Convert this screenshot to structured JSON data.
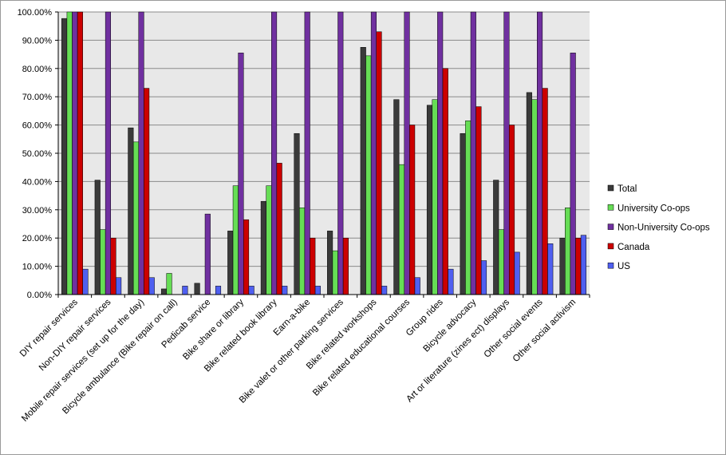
{
  "chart_data": {
    "type": "bar",
    "title": "",
    "xlabel": "",
    "ylabel": "",
    "ylim": [
      0,
      1
    ],
    "yticks": [
      0,
      0.1,
      0.2,
      0.3,
      0.4,
      0.5,
      0.6,
      0.7,
      0.8,
      0.9,
      1.0
    ],
    "ytick_labels": [
      "0.00%",
      "10.00%",
      "20.00%",
      "30.00%",
      "40.00%",
      "50.00%",
      "60.00%",
      "70.00%",
      "80.00%",
      "90.00%",
      "100.00%"
    ],
    "grid": true,
    "legend_position": "right",
    "categories": [
      "DIY repair services",
      "Non-DIY repair services",
      "Mobile repair services (set up for the day)",
      "Bicycle ambulance (Bike repair on call)",
      "Pedicab service",
      "Bike share or library",
      "Bike related book library",
      "Earn-a-bike",
      "Bike valet or other parking services",
      "Bike related workshops",
      "Bike related educational courses",
      "Group rides",
      "Bicycle advocacy",
      "Art or literature (zines ect) displays",
      "Other social events",
      "Other social activism"
    ],
    "series": [
      {
        "name": "Total",
        "color": "#3a3a3a",
        "values": [
          0.977,
          0.405,
          0.59,
          0.02,
          0.04,
          0.225,
          0.33,
          0.57,
          0.225,
          0.875,
          0.69,
          0.67,
          0.57,
          0.405,
          0.715,
          0.2
        ]
      },
      {
        "name": "University Co-ops",
        "color": "#66dd55",
        "values": [
          1.0,
          0.23,
          0.54,
          0.075,
          0.0,
          0.385,
          0.385,
          0.307,
          0.155,
          0.845,
          0.46,
          0.69,
          0.615,
          0.23,
          0.69,
          0.307
        ]
      },
      {
        "name": "Non-University Co-ops",
        "color": "#7030a0",
        "values": [
          1.0,
          1.0,
          1.0,
          0.0,
          0.285,
          0.855,
          1.0,
          1.0,
          1.0,
          1.0,
          1.0,
          1.0,
          1.0,
          1.0,
          1.0,
          0.855
        ]
      },
      {
        "name": "Canada",
        "color": "#cc0000",
        "values": [
          1.0,
          0.2,
          0.73,
          0.0,
          0.0,
          0.265,
          0.465,
          0.2,
          0.2,
          0.93,
          0.6,
          0.8,
          0.665,
          0.6,
          0.73,
          0.2
        ]
      },
      {
        "name": "US",
        "color": "#4f5ff0",
        "values": [
          0.09,
          0.06,
          0.06,
          0.03,
          0.03,
          0.03,
          0.03,
          0.03,
          0.0,
          0.03,
          0.06,
          0.09,
          0.12,
          0.15,
          0.18,
          0.21
        ]
      }
    ]
  }
}
